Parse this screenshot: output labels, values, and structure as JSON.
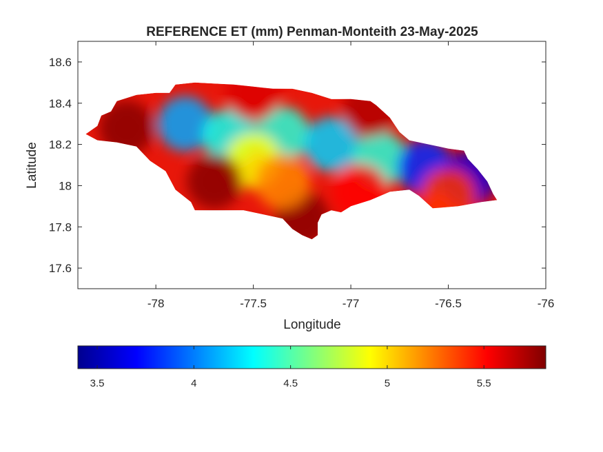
{
  "chart_data": {
    "type": "heatmap",
    "title": "REFERENCE ET (mm) Penman-Monteith 23-May-2025",
    "xlabel": "Longitude",
    "ylabel": "Latitude",
    "xlim": [
      -78.4,
      -76
    ],
    "ylim": [
      17.5,
      18.7
    ],
    "xticks": [
      -78,
      -77.5,
      -77,
      -76.5,
      -76
    ],
    "yticks": [
      17.6,
      17.8,
      18,
      18.2,
      18.4,
      18.6
    ],
    "grid": false,
    "colormap": "jet",
    "colorbar": {
      "placement": "bottom",
      "range": [
        3.4,
        5.82
      ],
      "ticks": [
        3.5,
        4,
        4.5,
        5,
        5.5
      ]
    },
    "region_outline": [
      [
        -78.33,
        18.27
      ],
      [
        -78.3,
        18.29
      ],
      [
        -78.28,
        18.34
      ],
      [
        -78.23,
        18.36
      ],
      [
        -78.2,
        18.41
      ],
      [
        -78.1,
        18.44
      ],
      [
        -78.0,
        18.45
      ],
      [
        -77.93,
        18.45
      ],
      [
        -77.9,
        18.49
      ],
      [
        -77.8,
        18.5
      ],
      [
        -77.6,
        18.49
      ],
      [
        -77.5,
        18.48
      ],
      [
        -77.4,
        18.47
      ],
      [
        -77.3,
        18.47
      ],
      [
        -77.2,
        18.45
      ],
      [
        -77.1,
        18.42
      ],
      [
        -77.0,
        18.42
      ],
      [
        -76.9,
        18.41
      ],
      [
        -76.87,
        18.39
      ],
      [
        -76.8,
        18.33
      ],
      [
        -76.75,
        18.26
      ],
      [
        -76.7,
        18.22
      ],
      [
        -76.6,
        18.2
      ],
      [
        -76.5,
        18.18
      ],
      [
        -76.42,
        18.17
      ],
      [
        -76.4,
        18.13
      ],
      [
        -76.35,
        18.08
      ],
      [
        -76.3,
        18.02
      ],
      [
        -76.27,
        17.96
      ],
      [
        -76.25,
        17.93
      ],
      [
        -76.33,
        17.92
      ],
      [
        -76.45,
        17.9
      ],
      [
        -76.58,
        17.89
      ],
      [
        -76.65,
        17.95
      ],
      [
        -76.7,
        17.98
      ],
      [
        -76.8,
        17.97
      ],
      [
        -76.9,
        17.93
      ],
      [
        -77.0,
        17.9
      ],
      [
        -77.05,
        17.87
      ],
      [
        -77.1,
        17.88
      ],
      [
        -77.15,
        17.86
      ],
      [
        -77.17,
        17.82
      ],
      [
        -77.17,
        17.76
      ],
      [
        -77.2,
        17.74
      ],
      [
        -77.25,
        17.76
      ],
      [
        -77.3,
        17.79
      ],
      [
        -77.35,
        17.84
      ],
      [
        -77.45,
        17.86
      ],
      [
        -77.55,
        17.88
      ],
      [
        -77.62,
        17.88
      ],
      [
        -77.7,
        17.88
      ],
      [
        -77.75,
        17.88
      ],
      [
        -77.8,
        17.88
      ],
      [
        -77.82,
        17.92
      ],
      [
        -77.9,
        17.98
      ],
      [
        -77.95,
        18.07
      ],
      [
        -78.03,
        18.12
      ],
      [
        -78.1,
        18.19
      ],
      [
        -78.2,
        18.21
      ],
      [
        -78.3,
        18.22
      ],
      [
        -78.36,
        18.25
      ]
    ],
    "field_features": [
      {
        "lon": -77.35,
        "lat": 18.25,
        "value": 4.4
      },
      {
        "lon": -77.85,
        "lat": 18.3,
        "value": 4.1
      },
      {
        "lon": -77.62,
        "lat": 18.24,
        "value": 4.35
      },
      {
        "lon": -77.1,
        "lat": 18.2,
        "value": 4.2
      },
      {
        "lon": -76.85,
        "lat": 18.13,
        "value": 4.4
      },
      {
        "lon": -76.62,
        "lat": 18.09,
        "value": 3.8
      },
      {
        "lon": -76.4,
        "lat": 18.03,
        "value": 3.6
      },
      {
        "lon": -77.5,
        "lat": 18.12,
        "value": 4.9
      },
      {
        "lon": -78.15,
        "lat": 18.28,
        "value": 5.8
      },
      {
        "lon": -77.7,
        "lat": 18.02,
        "value": 5.8
      },
      {
        "lon": -77.5,
        "lat": 18.45,
        "value": 5.6
      },
      {
        "lon": -77.25,
        "lat": 17.84,
        "value": 5.8
      },
      {
        "lon": -76.95,
        "lat": 17.97,
        "value": 5.5
      },
      {
        "lon": -76.9,
        "lat": 18.37,
        "value": 5.7
      },
      {
        "lon": -77.35,
        "lat": 18.02,
        "value": 5.2
      },
      {
        "lon": -76.5,
        "lat": 17.95,
        "value": 5.4
      }
    ]
  }
}
